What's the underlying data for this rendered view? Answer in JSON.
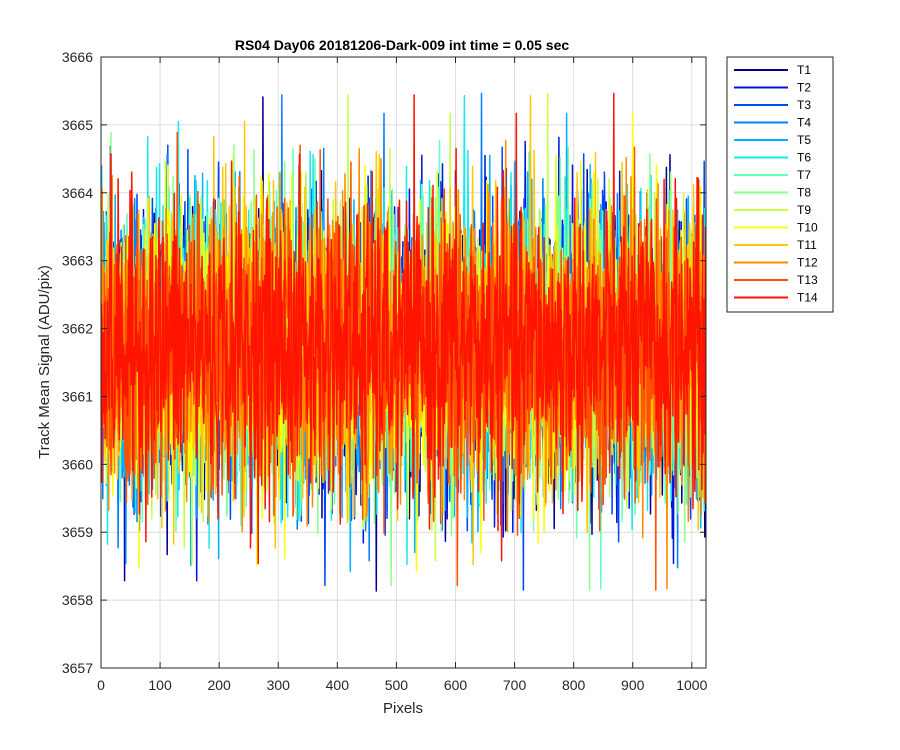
{
  "chart_data": {
    "type": "line",
    "title": "RS04 Day06 20181206-Dark-009 int time = 0.05 sec",
    "xlabel": "Pixels",
    "ylabel": "Track Mean Signal (ADU/pix)",
    "xlim": [
      0,
      1024
    ],
    "ylim": [
      3657,
      3666
    ],
    "xticks": [
      0,
      100,
      200,
      300,
      400,
      500,
      600,
      700,
      800,
      900,
      1000
    ],
    "yticks": [
      3657,
      3658,
      3659,
      3660,
      3661,
      3662,
      3663,
      3664,
      3665,
      3666
    ],
    "grid": true,
    "legend_position": "outside-top-right",
    "series_summary": {
      "n_points_per_series": 1024,
      "x_start": 1,
      "x_end": 1024,
      "approx_mean": 3661.7,
      "approx_range": [
        3658.0,
        3665.6
      ]
    },
    "series": [
      {
        "name": "T1",
        "color": "#00008f"
      },
      {
        "name": "T2",
        "color": "#0018d4"
      },
      {
        "name": "T3",
        "color": "#0047f5"
      },
      {
        "name": "T4",
        "color": "#0080ff"
      },
      {
        "name": "T5",
        "color": "#00b4ff"
      },
      {
        "name": "T6",
        "color": "#1ae8ec"
      },
      {
        "name": "T7",
        "color": "#66ffb8"
      },
      {
        "name": "T8",
        "color": "#8cff8a"
      },
      {
        "name": "T9",
        "color": "#c8ff46"
      },
      {
        "name": "T10",
        "color": "#ffff00"
      },
      {
        "name": "T11",
        "color": "#ffc800"
      },
      {
        "name": "T12",
        "color": "#ff8a00"
      },
      {
        "name": "T13",
        "color": "#ff5000"
      },
      {
        "name": "T14",
        "color": "#ff1400"
      }
    ]
  }
}
